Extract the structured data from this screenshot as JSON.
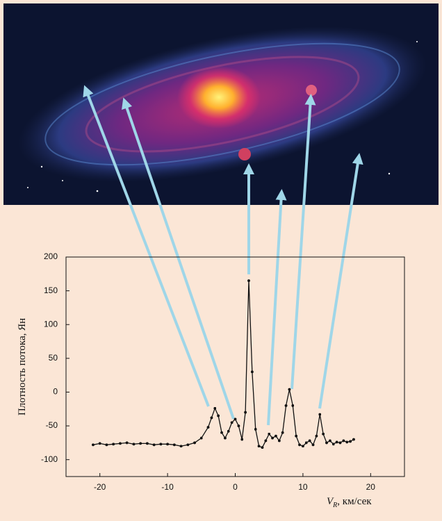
{
  "chart_data": {
    "type": "line",
    "y_label": "Плотность потока, Ян",
    "x_label_symbol": "V",
    "x_label_subscript": "R",
    "x_label_unit": ", км/сек",
    "xlim": [
      -25,
      25
    ],
    "ylim": [
      -125,
      200
    ],
    "xticks": [
      -20,
      -10,
      0,
      10,
      20
    ],
    "yticks": [
      -100,
      -50,
      0,
      50,
      100,
      150,
      200
    ],
    "x": [
      -21,
      -20,
      -19,
      -18,
      -17,
      -16,
      -15,
      -14,
      -13,
      -12,
      -11,
      -10,
      -9,
      -8,
      -7,
      -6,
      -5,
      -4,
      -3.5,
      -3,
      -2.5,
      -2,
      -1.5,
      -1,
      -0.5,
      0,
      0.5,
      1,
      1.5,
      2,
      2.5,
      3,
      3.5,
      4,
      4.5,
      5,
      5.5,
      6,
      6.5,
      7,
      7.5,
      8,
      8.5,
      9,
      9.5,
      10,
      10.5,
      11,
      11.5,
      12,
      12.5,
      13,
      13.5,
      14,
      14.5,
      15,
      15.5,
      16,
      16.5,
      17,
      17.5
    ],
    "series": [
      {
        "color": "#111111",
        "values": [
          -78,
          -76,
          -78,
          -77,
          -76,
          -75,
          -77,
          -76,
          -76,
          -78,
          -77,
          -77,
          -78,
          -80,
          -78,
          -75,
          -68,
          -52,
          -38,
          -24,
          -35,
          -60,
          -68,
          -58,
          -45,
          -40,
          -50,
          -70,
          -30,
          165,
          30,
          -55,
          -80,
          -82,
          -72,
          -62,
          -68,
          -65,
          -72,
          -60,
          -20,
          4,
          -20,
          -65,
          -78,
          -80,
          -75,
          -72,
          -78,
          -65,
          -33,
          -62,
          -75,
          -72,
          -77,
          -74,
          -75,
          -72,
          -74,
          -73,
          -70
        ]
      }
    ]
  }
}
